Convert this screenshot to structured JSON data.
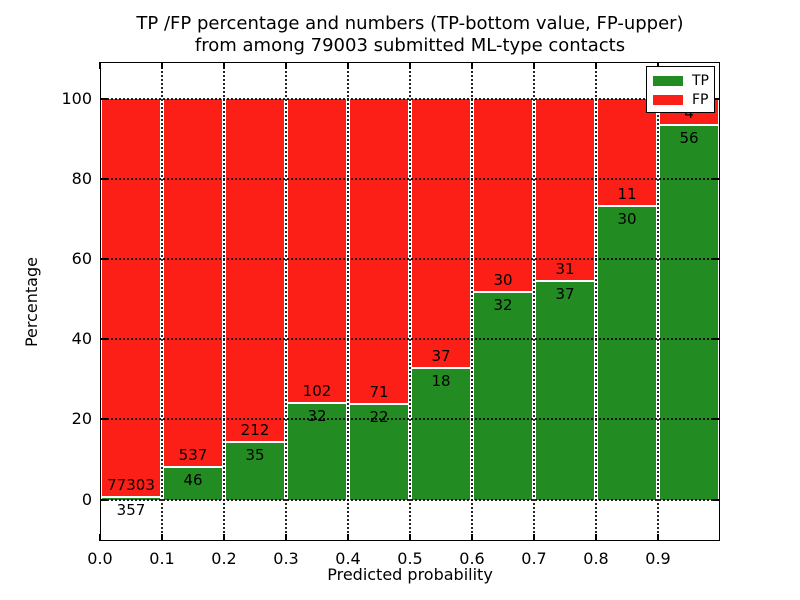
{
  "figure": {
    "title_line1": "TP /FP percentage and numbers (TP-bottom value, FP-upper)",
    "title_line2": "from among 79003 submitted ML-type contacts"
  },
  "chart_data": {
    "type": "bar",
    "subtype": "stacked-percentage",
    "title": "TP /FP percentage and numbers (TP-bottom value, FP-upper)\nfrom among 79003 submitted ML-type contacts",
    "xlabel": "Predicted probability",
    "ylabel": "Percentage",
    "total_contacts": 79003,
    "bins": [
      "0.0-0.1",
      "0.1-0.2",
      "0.2-0.3",
      "0.3-0.4",
      "0.4-0.5",
      "0.5-0.6",
      "0.6-0.7",
      "0.7-0.8",
      "0.8-0.9",
      "0.9-1.0"
    ],
    "series": [
      {
        "name": "TP",
        "color": "#228b22",
        "counts": [
          357,
          46,
          35,
          32,
          22,
          18,
          32,
          37,
          30,
          56
        ]
      },
      {
        "name": "FP",
        "color": "#fb1f17",
        "counts": [
          77303,
          537,
          212,
          102,
          71,
          37,
          30,
          31,
          11,
          4
        ]
      }
    ],
    "tp_percent_of_bin": [
      0.46,
      7.89,
      14.17,
      23.88,
      23.66,
      32.73,
      51.61,
      54.41,
      73.17,
      93.33
    ],
    "stacked_total_percent": 100,
    "xticks": [
      "0.0",
      "0.1",
      "0.2",
      "0.3",
      "0.4",
      "0.5",
      "0.6",
      "0.7",
      "0.8",
      "0.9"
    ],
    "yticks": [
      0,
      20,
      40,
      60,
      80,
      100
    ],
    "xlim": [
      0.0,
      1.0
    ],
    "ylim": [
      -10.35,
      109.3
    ],
    "grid": "dotted-both-axes",
    "annotation_note": "TP count below segment boundary, FP count above boundary",
    "colors": {
      "tp": "#228b22",
      "fp": "#fb1f17",
      "grid": "#000000",
      "background": "#ffffff"
    },
    "legend": {
      "position": "upper-right",
      "entries": [
        {
          "label": "TP",
          "color": "#228b22"
        },
        {
          "label": "FP",
          "color": "#fb1f17"
        }
      ]
    }
  }
}
